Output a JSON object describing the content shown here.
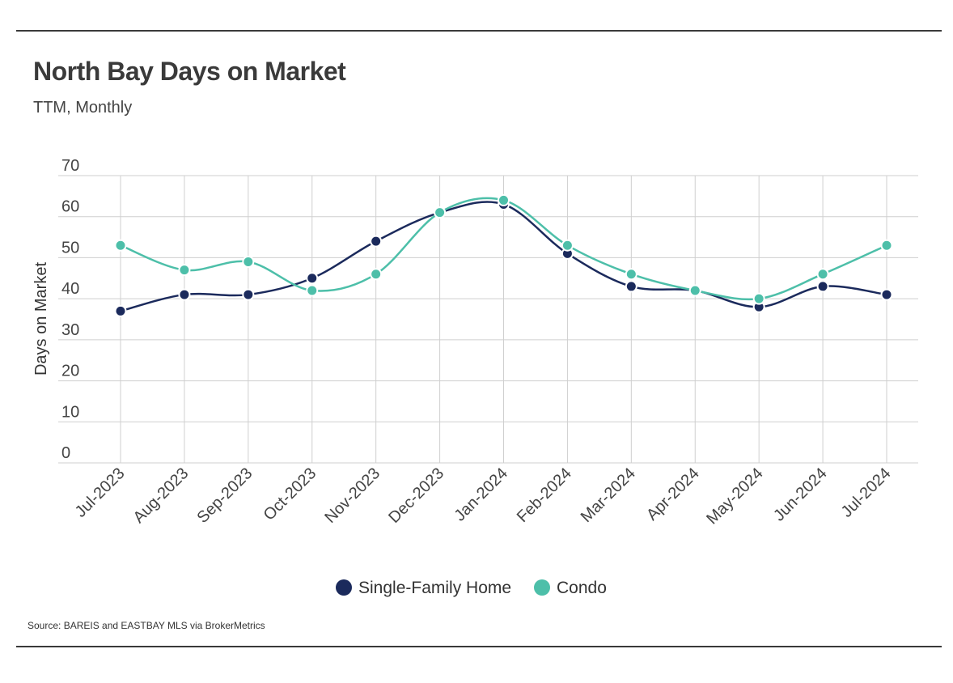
{
  "header": {
    "title": "North Bay Days on Market",
    "subtitle": "TTM, Monthly"
  },
  "footer": {
    "source": "Source:  BAREIS and EASTBAY MLS via BrokerMetrics"
  },
  "colors": {
    "single_family": "#1b2a5c",
    "condo": "#4dbfa9",
    "grid": "#cfcfcf",
    "rule": "#3a3a3a"
  },
  "chart_data": {
    "type": "line",
    "title": "North Bay Days on Market",
    "subtitle": "TTM, Monthly",
    "xlabel": "",
    "ylabel": "Days on Market",
    "ylim": [
      0,
      70
    ],
    "yticks": [
      0,
      10,
      20,
      30,
      40,
      50,
      60,
      70
    ],
    "grid": true,
    "legend_position": "bottom-center",
    "categories": [
      "Jul-2023",
      "Aug-2023",
      "Sep-2023",
      "Oct-2023",
      "Nov-2023",
      "Dec-2023",
      "Jan-2024",
      "Feb-2024",
      "Mar-2024",
      "Apr-2024",
      "May-2024",
      "Jun-2024",
      "Jul-2024"
    ],
    "series": [
      {
        "name": "Single-Family Home",
        "color": "#1b2a5c",
        "values": [
          37,
          41,
          41,
          45,
          54,
          61,
          63,
          51,
          43,
          42,
          38,
          43,
          41
        ]
      },
      {
        "name": "Condo",
        "color": "#4dbfa9",
        "values": [
          53,
          47,
          49,
          42,
          46,
          61,
          64,
          53,
          46,
          42,
          40,
          46,
          53
        ]
      }
    ]
  }
}
